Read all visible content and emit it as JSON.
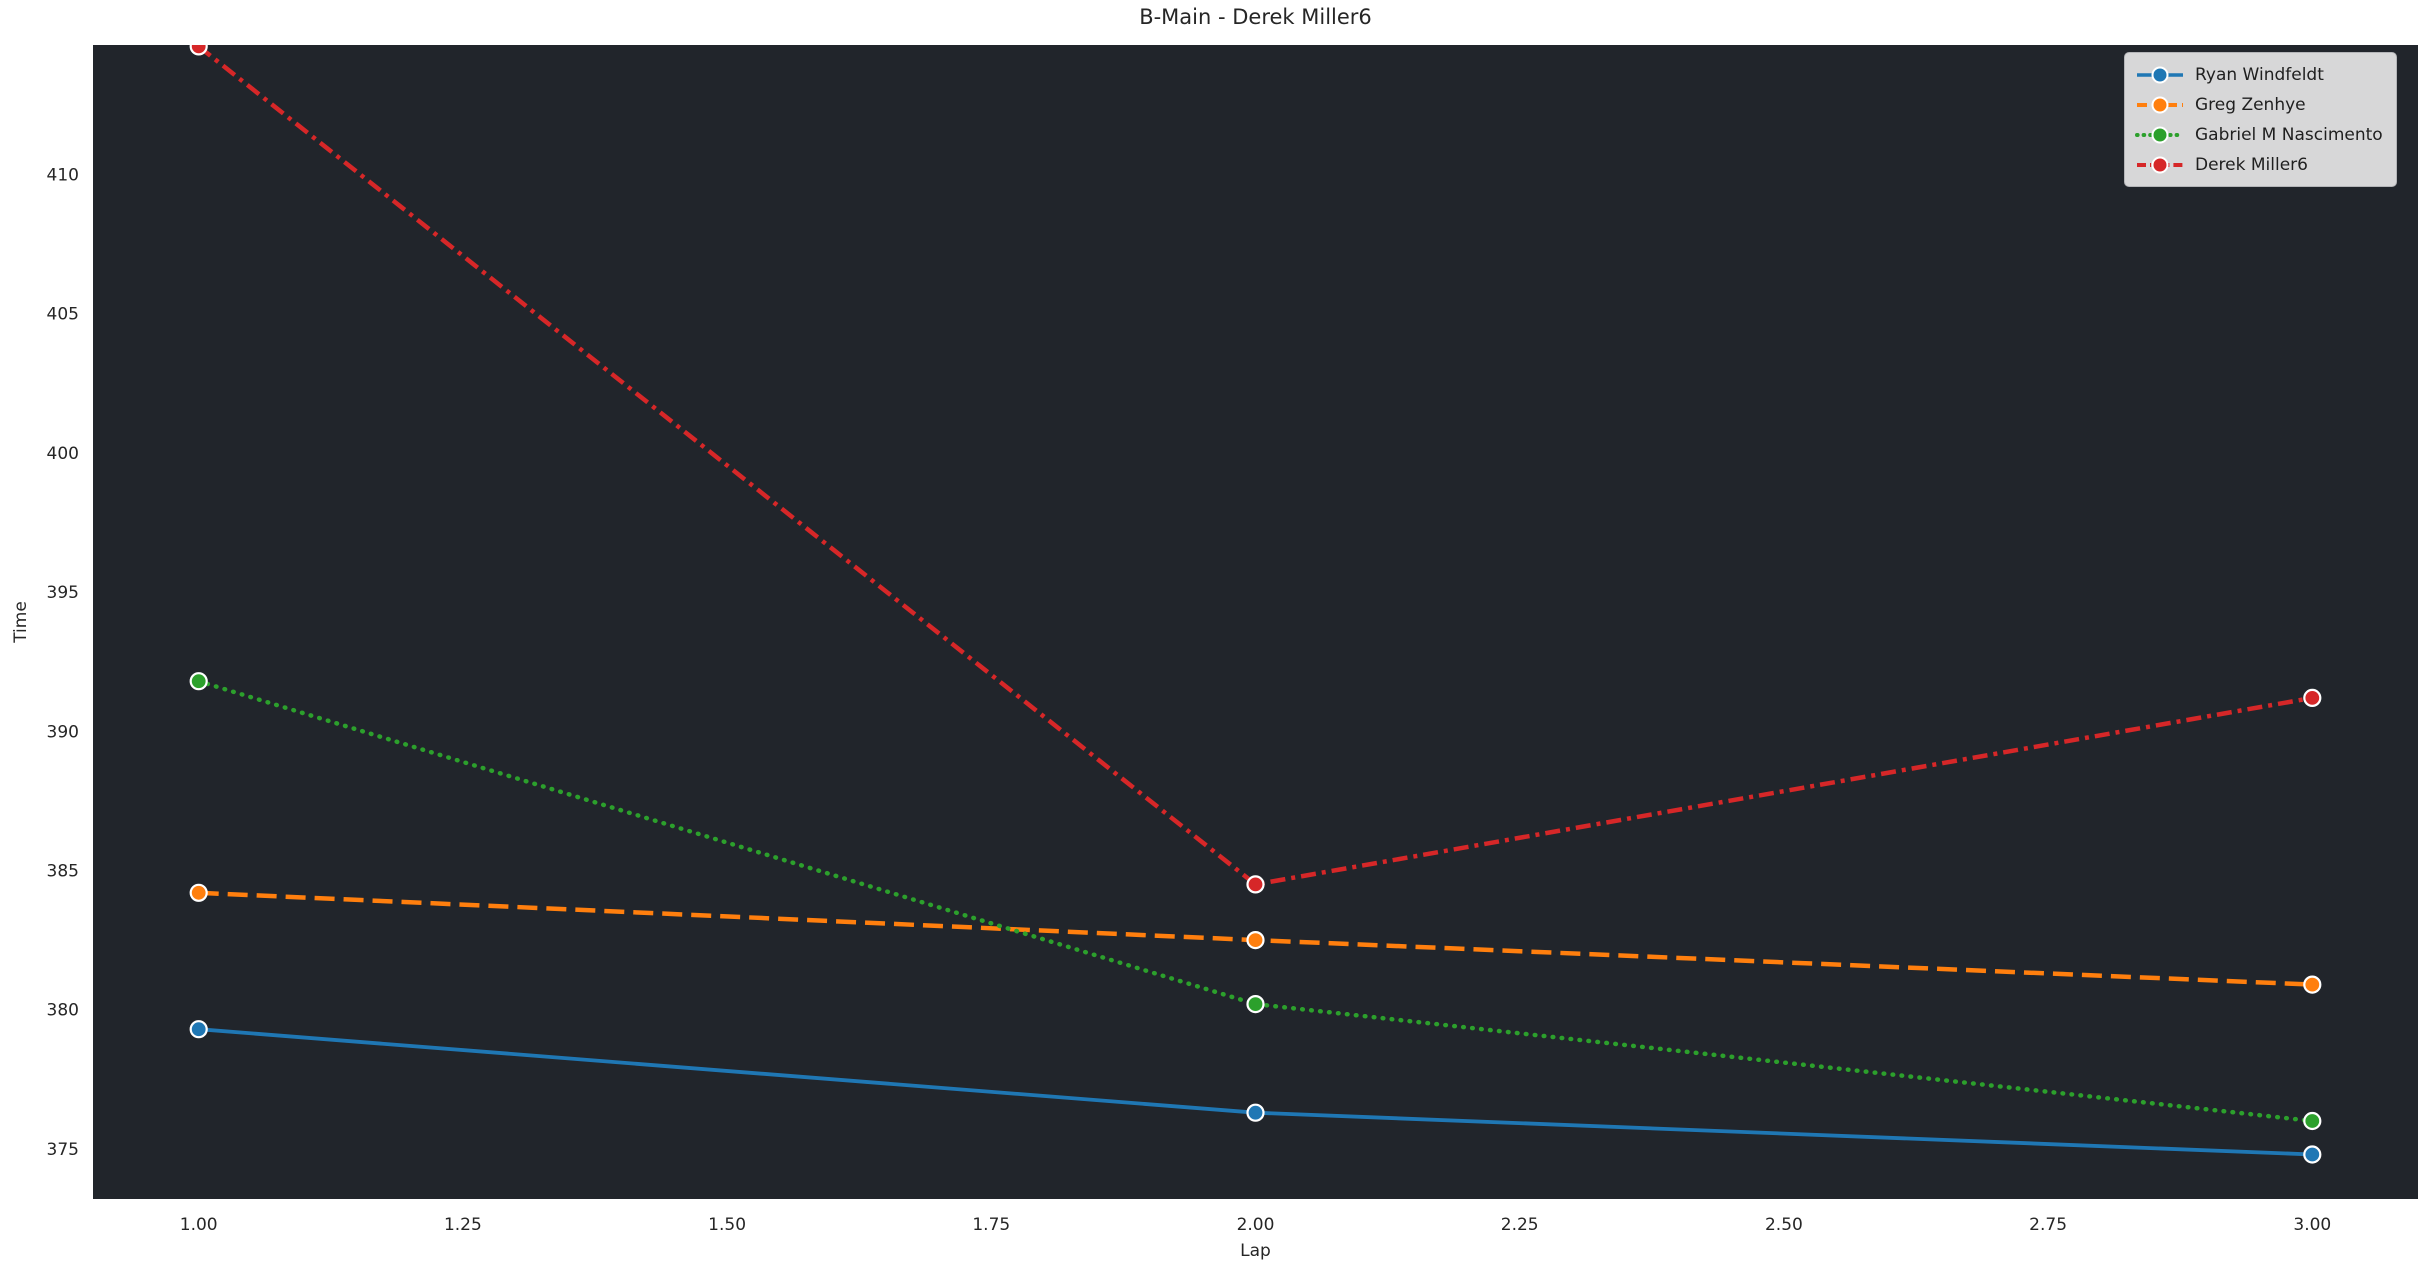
{
  "figure": {
    "title": "B-Main - Derek Miller6"
  },
  "theme": {
    "page_bg": "#ffffff",
    "plot_bg": "#21252b",
    "text_color": "#262626",
    "marker_edge": "#ffffff",
    "legend_bg": "#d2d3d6",
    "legend_border": "#b4b5b8"
  },
  "chart_data": {
    "type": "line",
    "title": "B-Main - Derek Miller6",
    "xlabel": "Lap",
    "ylabel": "Time",
    "grid": false,
    "legend_position": "upper right",
    "xlim": [
      0.9,
      3.1
    ],
    "ylim": [
      373.2,
      414.65
    ],
    "x_tick_values": [
      1.0,
      1.25,
      1.5,
      1.75,
      2.0,
      2.25,
      2.5,
      2.75,
      3.0
    ],
    "x_tick_labels": [
      "1.00",
      "1.25",
      "1.50",
      "1.75",
      "2.00",
      "2.25",
      "2.50",
      "2.75",
      "3.00"
    ],
    "y_tick_values": [
      375,
      380,
      385,
      390,
      395,
      400,
      405,
      410
    ],
    "y_tick_labels": [
      "375",
      "380",
      "385",
      "390",
      "395",
      "400",
      "405",
      "410"
    ],
    "x": [
      1,
      2,
      3
    ],
    "series": [
      {
        "name": "Ryan Windfeldt",
        "color": "#1f77b4",
        "linestyle": "solid",
        "marker": "circle",
        "values": [
          379.3,
          376.3,
          374.8
        ]
      },
      {
        "name": "Greg Zenhye",
        "color": "#ff7f0e",
        "linestyle": "dashed",
        "marker": "circle",
        "values": [
          384.2,
          382.5,
          380.9
        ]
      },
      {
        "name": "Gabriel M Nascimento",
        "color": "#2ca02c",
        "linestyle": "dotted",
        "marker": "circle",
        "values": [
          391.8,
          380.2,
          376.0
        ]
      },
      {
        "name": "Derek Miller6",
        "color": "#d62728",
        "linestyle": "dashdot",
        "marker": "circle",
        "values": [
          414.6,
          384.5,
          391.2
        ]
      }
    ]
  }
}
